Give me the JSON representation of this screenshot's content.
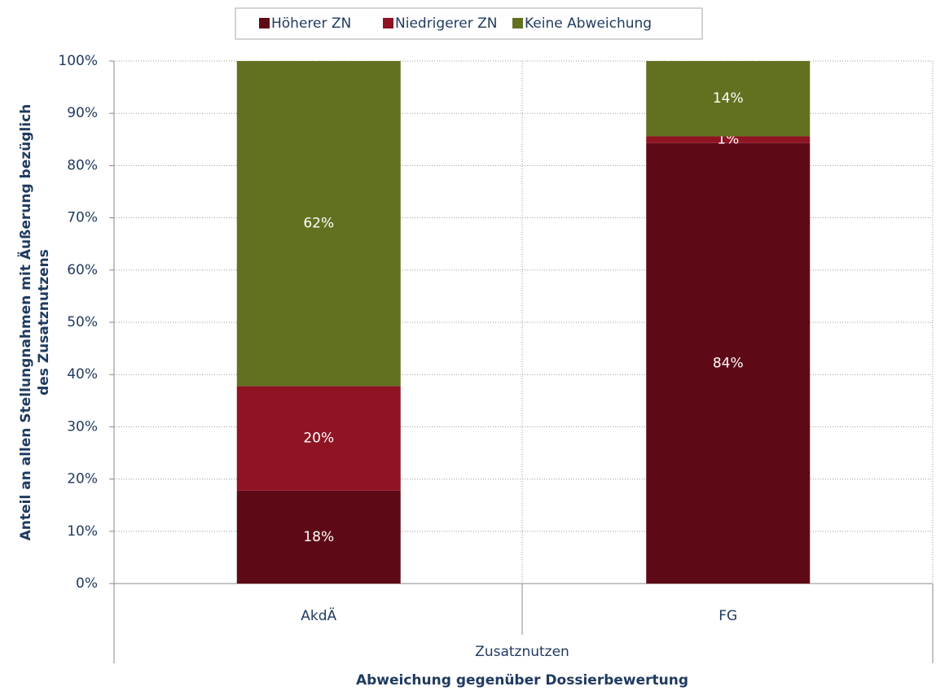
{
  "chart_data": {
    "type": "stacked_bar",
    "categories": [
      "AkdÄ",
      "FG"
    ],
    "group_label": "Zusatznutzen",
    "x_label": "Abweichung gegenüber Dossierbewertung",
    "y_label": [
      "Anteil an allen Stellungnahmen mit Äußerung bezüglich",
      "des Zusatznutzens"
    ],
    "series": [
      {
        "name": "Höherer ZN",
        "color": "#5e0a16",
        "values": [
          17.8,
          84.3
        ],
        "value_labels": [
          "18%",
          "84%"
        ]
      },
      {
        "name": "Niedrigerer ZN",
        "color": "#8e1423",
        "values": [
          20,
          1.3
        ],
        "value_labels": [
          "20%",
          "1%"
        ]
      },
      {
        "name": "Keine Abweichung",
        "color": "#627120",
        "values": [
          62.2,
          14.4
        ],
        "value_labels": [
          "62%",
          "14%"
        ]
      }
    ],
    "ylim": [
      0,
      100
    ],
    "yticks": [
      {
        "value": 0,
        "label": "0%"
      },
      {
        "value": 10,
        "label": "10%"
      },
      {
        "value": 20,
        "label": "20%"
      },
      {
        "value": 30,
        "label": "30%"
      },
      {
        "value": 40,
        "label": "40%"
      },
      {
        "value": 50,
        "label": "50%"
      },
      {
        "value": 60,
        "label": "60%"
      },
      {
        "value": 70,
        "label": "70%"
      },
      {
        "value": 80,
        "label": "80%"
      },
      {
        "value": 90,
        "label": "90%"
      },
      {
        "value": 100,
        "label": "100%"
      }
    ],
    "grid": true,
    "legend": "top"
  }
}
